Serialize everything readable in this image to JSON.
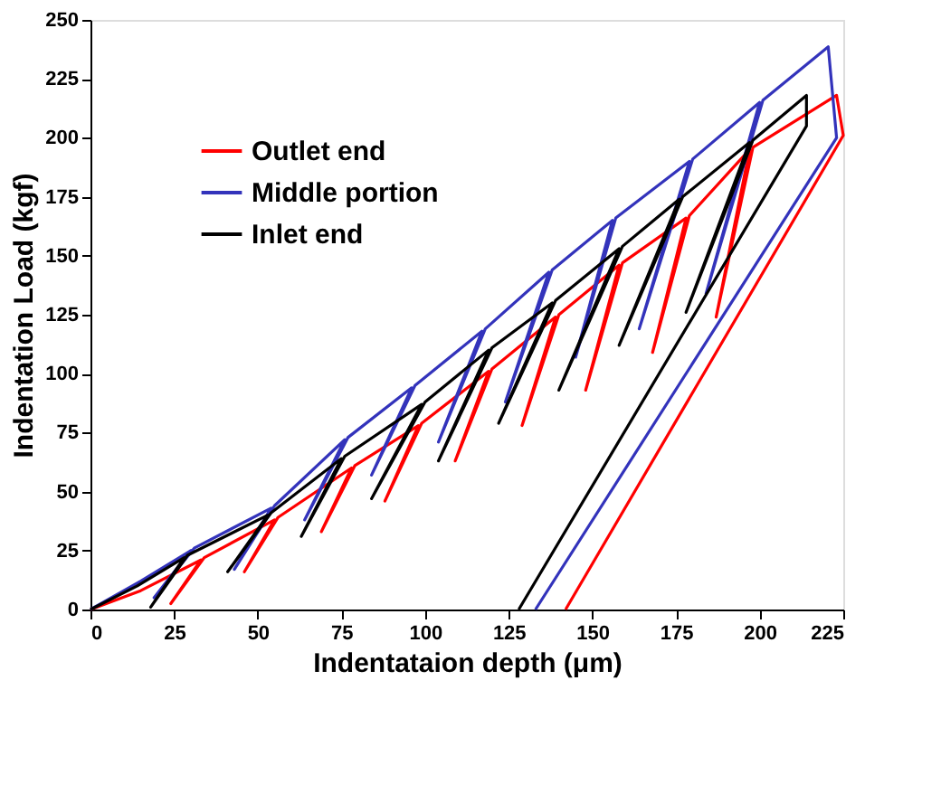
{
  "chart_data": {
    "type": "line",
    "xlabel": "Indentataion depth (μm)",
    "ylabel": "Indentation Load (kgf)",
    "xlim": [
      0,
      225
    ],
    "xticks": [
      0,
      25,
      50,
      75,
      100,
      125,
      150,
      175,
      200,
      225
    ],
    "ylim": [
      0,
      250
    ],
    "yticks": [
      0,
      25,
      50,
      75,
      100,
      125,
      150,
      175,
      200,
      225,
      250
    ],
    "grid": false,
    "legend": "top left",
    "marker": "none",
    "line_style": "solid",
    "series": [
      {
        "name": "Outlet end",
        "color": "#ff0000",
        "x": [
          0,
          15,
          33,
          24,
          34,
          55,
          46,
          56,
          78,
          69,
          79,
          98,
          88,
          99,
          119,
          109,
          120,
          139,
          129,
          140,
          158,
          148,
          159,
          178,
          168,
          179,
          197,
          187,
          198,
          223,
          225,
          142
        ],
        "values": [
          0,
          8,
          21,
          2.5,
          22,
          38,
          16,
          39,
          60,
          33,
          61,
          78,
          46,
          79,
          101,
          63,
          102,
          124,
          78,
          125,
          146,
          93,
          147,
          166,
          109,
          167,
          195,
          124,
          196,
          218,
          201,
          0
        ]
      },
      {
        "name": "Middle portion",
        "color": "#3333bb",
        "x": [
          0,
          15,
          30,
          19,
          31,
          54,
          43,
          55,
          76,
          64,
          77,
          96,
          84,
          97,
          117,
          104,
          118,
          137,
          124,
          138,
          156,
          145,
          157,
          179,
          164,
          180,
          200,
          184,
          201,
          220.5,
          223,
          133
        ],
        "values": [
          0,
          12,
          25,
          5,
          26,
          43,
          17,
          44,
          72,
          38,
          73,
          94,
          57,
          95,
          118,
          71,
          119,
          143,
          88,
          144,
          165,
          107,
          166,
          190,
          119,
          191,
          215,
          134,
          216,
          238.6,
          200,
          0
        ]
      },
      {
        "name": "Inlet end",
        "color": "#000000",
        "x": [
          0,
          14,
          28,
          18,
          29,
          53,
          41,
          54,
          75,
          63,
          76,
          99,
          84,
          100,
          119,
          104,
          120,
          138,
          122,
          139,
          158,
          140,
          159,
          176,
          158,
          177,
          197,
          178,
          198,
          214,
          214,
          128
        ],
        "values": [
          0,
          10,
          22,
          1,
          23,
          40,
          16,
          41,
          64,
          31,
          65,
          87,
          47,
          88,
          110,
          63,
          111,
          130,
          79,
          131,
          153,
          93,
          154,
          174,
          112,
          175,
          198,
          126,
          199,
          218,
          205,
          0
        ]
      }
    ]
  }
}
